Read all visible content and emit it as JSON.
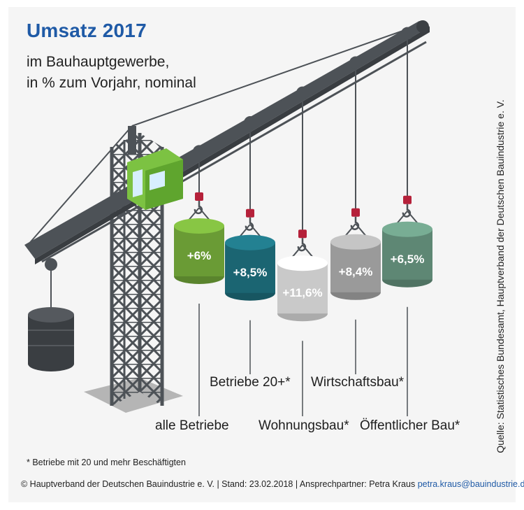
{
  "title": "Umsatz 2017",
  "subtitle_line1": "im Bauhauptgewerbe,",
  "subtitle_line2": "in % zum Vorjahr, nominal",
  "source": "Quelle: Statistisches Bundesamt, Hauptverband der Deutschen Bauindustrie e. V.",
  "footnote": "* Betriebe mit 20 und mehr Beschäftigten",
  "footer_text": "© Hauptverband der Deutschen Bauindustrie e. V. | Stand: 23.02.2018 | Ansprechpartner: Petra Kraus ",
  "footer_email": "petra.kraus@bauindustrie.de",
  "colors": {
    "title": "#1f5aa6",
    "series": [
      "#6a9b35",
      "#1b6572",
      "#c9c9c9",
      "#9a9a9a",
      "#5e8774"
    ],
    "crane": "#4d5257",
    "cabin": "#7cc242"
  },
  "chart_data": {
    "type": "bar",
    "title": "Umsatz 2017",
    "subtitle": "im Bauhauptgewerbe, in % zum Vorjahr, nominal",
    "categories": [
      "alle Betriebe",
      "Betriebe 20+*",
      "Wohnungsbau*",
      "Wirtschaftsbau*",
      "Öffentlicher Bau*"
    ],
    "values": [
      6.0,
      8.5,
      11.6,
      8.4,
      6.5
    ],
    "value_labels": [
      "+6%",
      "+8,5%",
      "+11,6%",
      "+8,4%",
      "+6,5%"
    ],
    "unit": "%",
    "grid": false,
    "legend": "none"
  }
}
